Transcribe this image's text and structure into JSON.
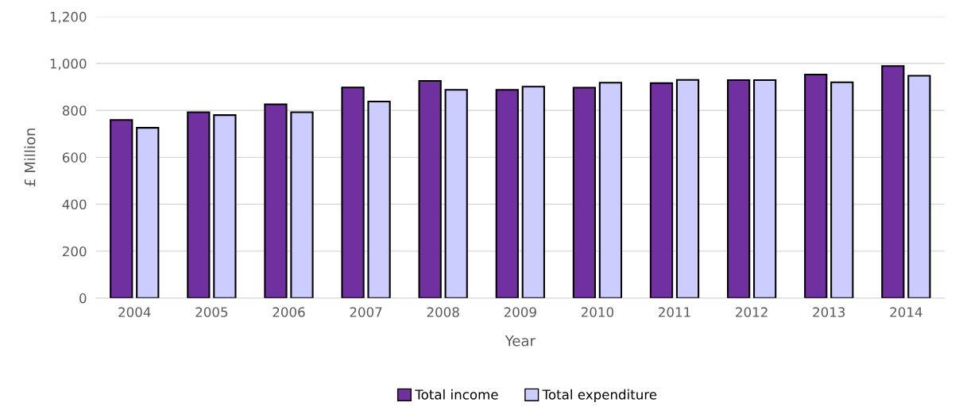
{
  "chart_data": {
    "type": "bar",
    "xlabel": "Year",
    "ylabel": "£ Million",
    "categories": [
      "2004",
      "2005",
      "2006",
      "2007",
      "2008",
      "2009",
      "2010",
      "2011",
      "2012",
      "2013",
      "2014"
    ],
    "series": [
      {
        "name": "Total income",
        "color": "#7030a0",
        "values": [
          759,
          792,
          826,
          898,
          926,
          888,
          897,
          916,
          929,
          953,
          989
        ]
      },
      {
        "name": "Total expenditure",
        "color": "#ccccff",
        "values": [
          726,
          780,
          792,
          838,
          888,
          901,
          918,
          930,
          929,
          920,
          948
        ]
      }
    ],
    "ylim": [
      0,
      1200
    ],
    "yticks": [
      {
        "value": 0,
        "label": "0"
      },
      {
        "value": 200,
        "label": "200"
      },
      {
        "value": 400,
        "label": "400"
      },
      {
        "value": 600,
        "label": "600"
      },
      {
        "value": 800,
        "label": "800"
      },
      {
        "value": 1000,
        "label": "1,000"
      },
      {
        "value": 1200,
        "label": "1,200"
      }
    ],
    "grid": "y",
    "legend": "bottom"
  }
}
